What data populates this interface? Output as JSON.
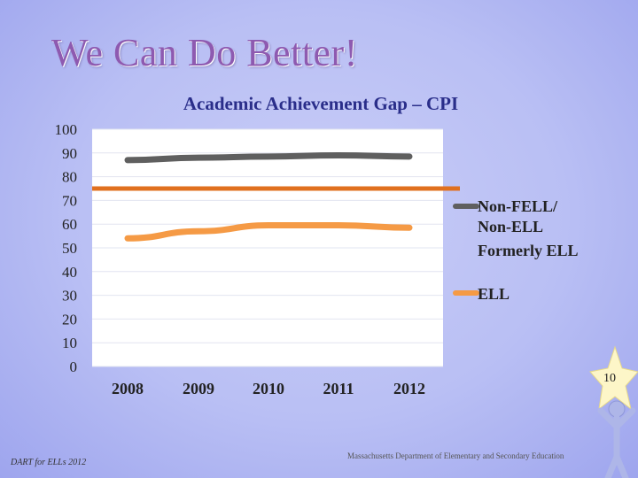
{
  "slide": {
    "title": "We Can Do Better!",
    "slide_number": "10",
    "footer_left": "DART for ELLs 2012",
    "footer_center": "Massachusetts Department of Elementary and Secondary Education"
  },
  "colors": {
    "non_fell": "#5f5f5f",
    "formerly_ell": "#e0701f",
    "ell": "#f59a45",
    "title": "#8e5ab0",
    "chart_title": "#2a2e8a"
  },
  "chart_data": {
    "type": "line",
    "title": "Academic Achievement Gap – CPI",
    "categories": [
      "2008",
      "2009",
      "2010",
      "2011",
      "2012"
    ],
    "yticks": [
      0,
      10,
      20,
      30,
      40,
      50,
      60,
      70,
      80,
      90,
      100
    ],
    "ylim": [
      0,
      100
    ],
    "grid": true,
    "legend_position": "right",
    "series": [
      {
        "name": "Non-FELL/ Non-ELL",
        "values": [
          87,
          88,
          88.5,
          89,
          88.5
        ],
        "color": "#5f5f5f"
      },
      {
        "name": "Formerly ELL",
        "values": [
          75,
          75,
          75,
          75,
          75
        ],
        "color": "#e0701f",
        "style": "flat"
      },
      {
        "name": "ELL",
        "values": [
          54,
          57,
          59.5,
          59.5,
          58.5
        ],
        "color": "#f59a45"
      }
    ]
  }
}
